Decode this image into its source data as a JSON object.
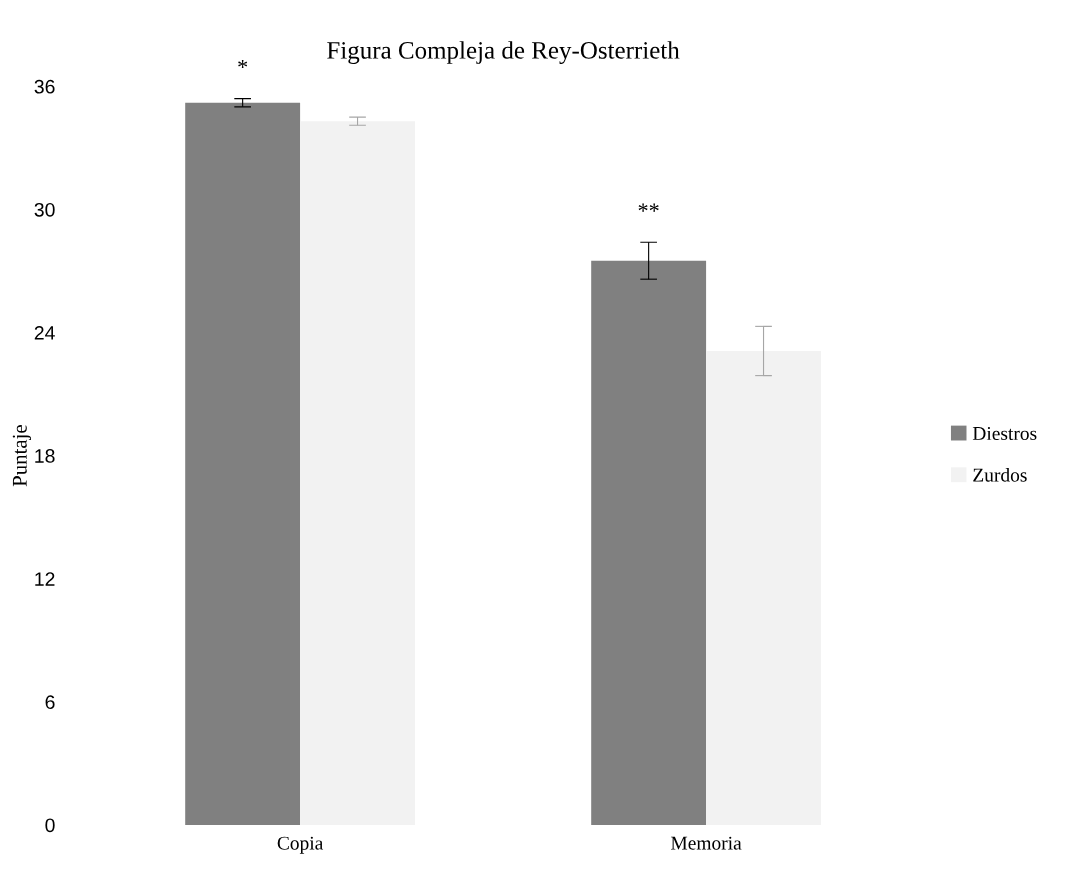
{
  "chart_data": {
    "type": "bar",
    "title": "Figura Compleja de Rey-Osterrieth",
    "ylabel": "Puntaje",
    "categories": [
      "Copia",
      "Memoria"
    ],
    "series": [
      {
        "name": "Diestros",
        "color": "#808080",
        "values": [
          35.2,
          27.5
        ],
        "errors": [
          0.2,
          0.9
        ]
      },
      {
        "name": "Zurdos",
        "color": "#f2f2f2",
        "values": [
          34.3,
          23.1
        ],
        "errors": [
          0.2,
          1.2
        ]
      }
    ],
    "annotations": [
      "*",
      "**"
    ],
    "ylim": [
      0,
      36
    ],
    "yticks": [
      0,
      6,
      12,
      18,
      24,
      30,
      36
    ],
    "grid": false,
    "legend": "right"
  }
}
